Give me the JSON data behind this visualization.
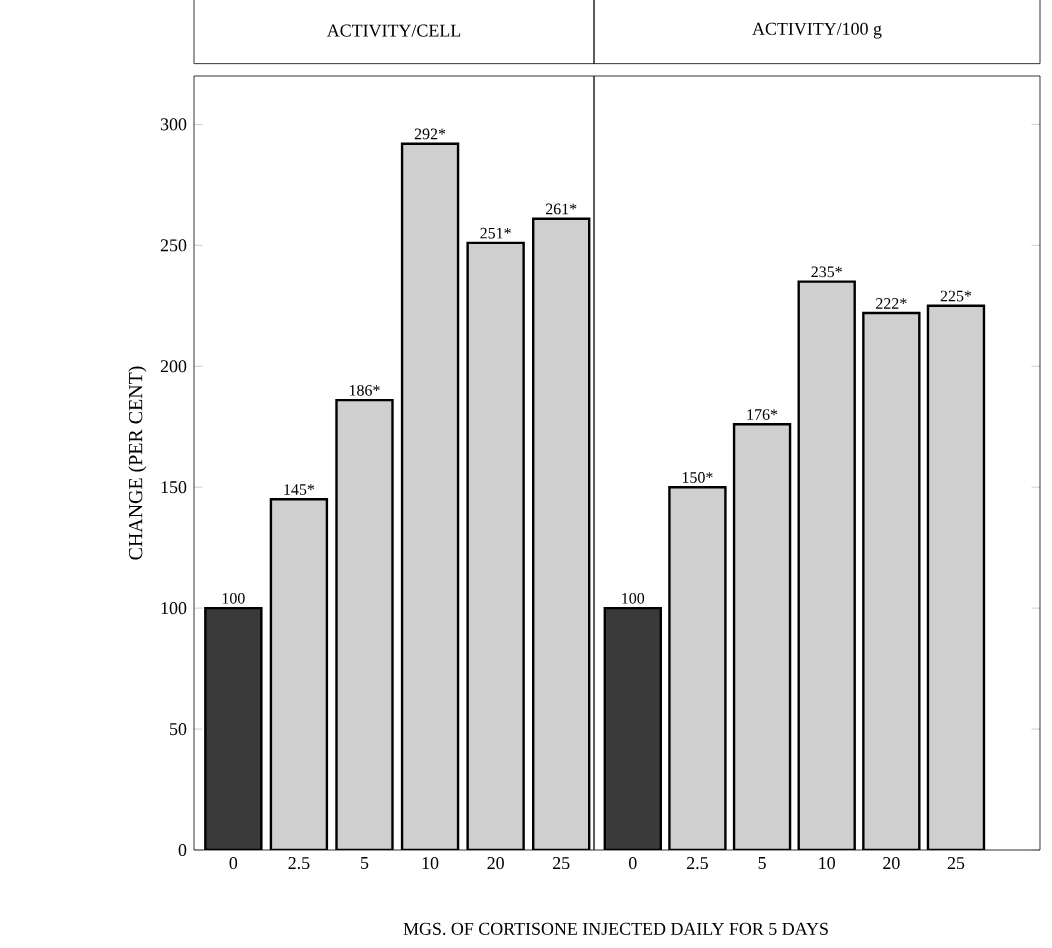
{
  "chart_data": [
    {
      "type": "bar",
      "title": "ACTIVITY/CELL",
      "ylabel": "CHANGE (PER CENT)",
      "categories": [
        "0",
        "2.5",
        "5",
        "10",
        "20",
        "25"
      ],
      "values": [
        100,
        145,
        186,
        292,
        251,
        261
      ],
      "value_labels": [
        "100",
        "145*",
        "186*",
        "292*",
        "251*",
        "261*"
      ],
      "colors": [
        "#3a3a3a",
        "#cfcfcf",
        "#cfcfcf",
        "#cfcfcf",
        "#cfcfcf",
        "#cfcfcf"
      ],
      "ylim": [
        0,
        320
      ],
      "yticks": [
        0,
        50,
        100,
        150,
        200,
        250,
        300
      ],
      "annotations": [
        "MGS. OF CORTISONE INJECTED DAILY FOR 5 DAYS"
      ]
    },
    {
      "type": "bar",
      "title": "ACTIVITY/100 g",
      "categories": [
        "0",
        "2.5",
        "5",
        "10",
        "20",
        "25"
      ],
      "values": [
        100,
        150,
        176,
        235,
        222,
        225
      ],
      "value_labels": [
        "100",
        "150*",
        "176*",
        "235*",
        "222*",
        "225*"
      ],
      "colors": [
        "#3a3a3a",
        "#cfcfcf",
        "#cfcfcf",
        "#cfcfcf",
        "#cfcfcf",
        "#cfcfcf"
      ],
      "ylim": [
        0,
        320
      ],
      "yticks": [
        0,
        50,
        100,
        150,
        200,
        250,
        300
      ],
      "tick_labels": "x"
    }
  ]
}
